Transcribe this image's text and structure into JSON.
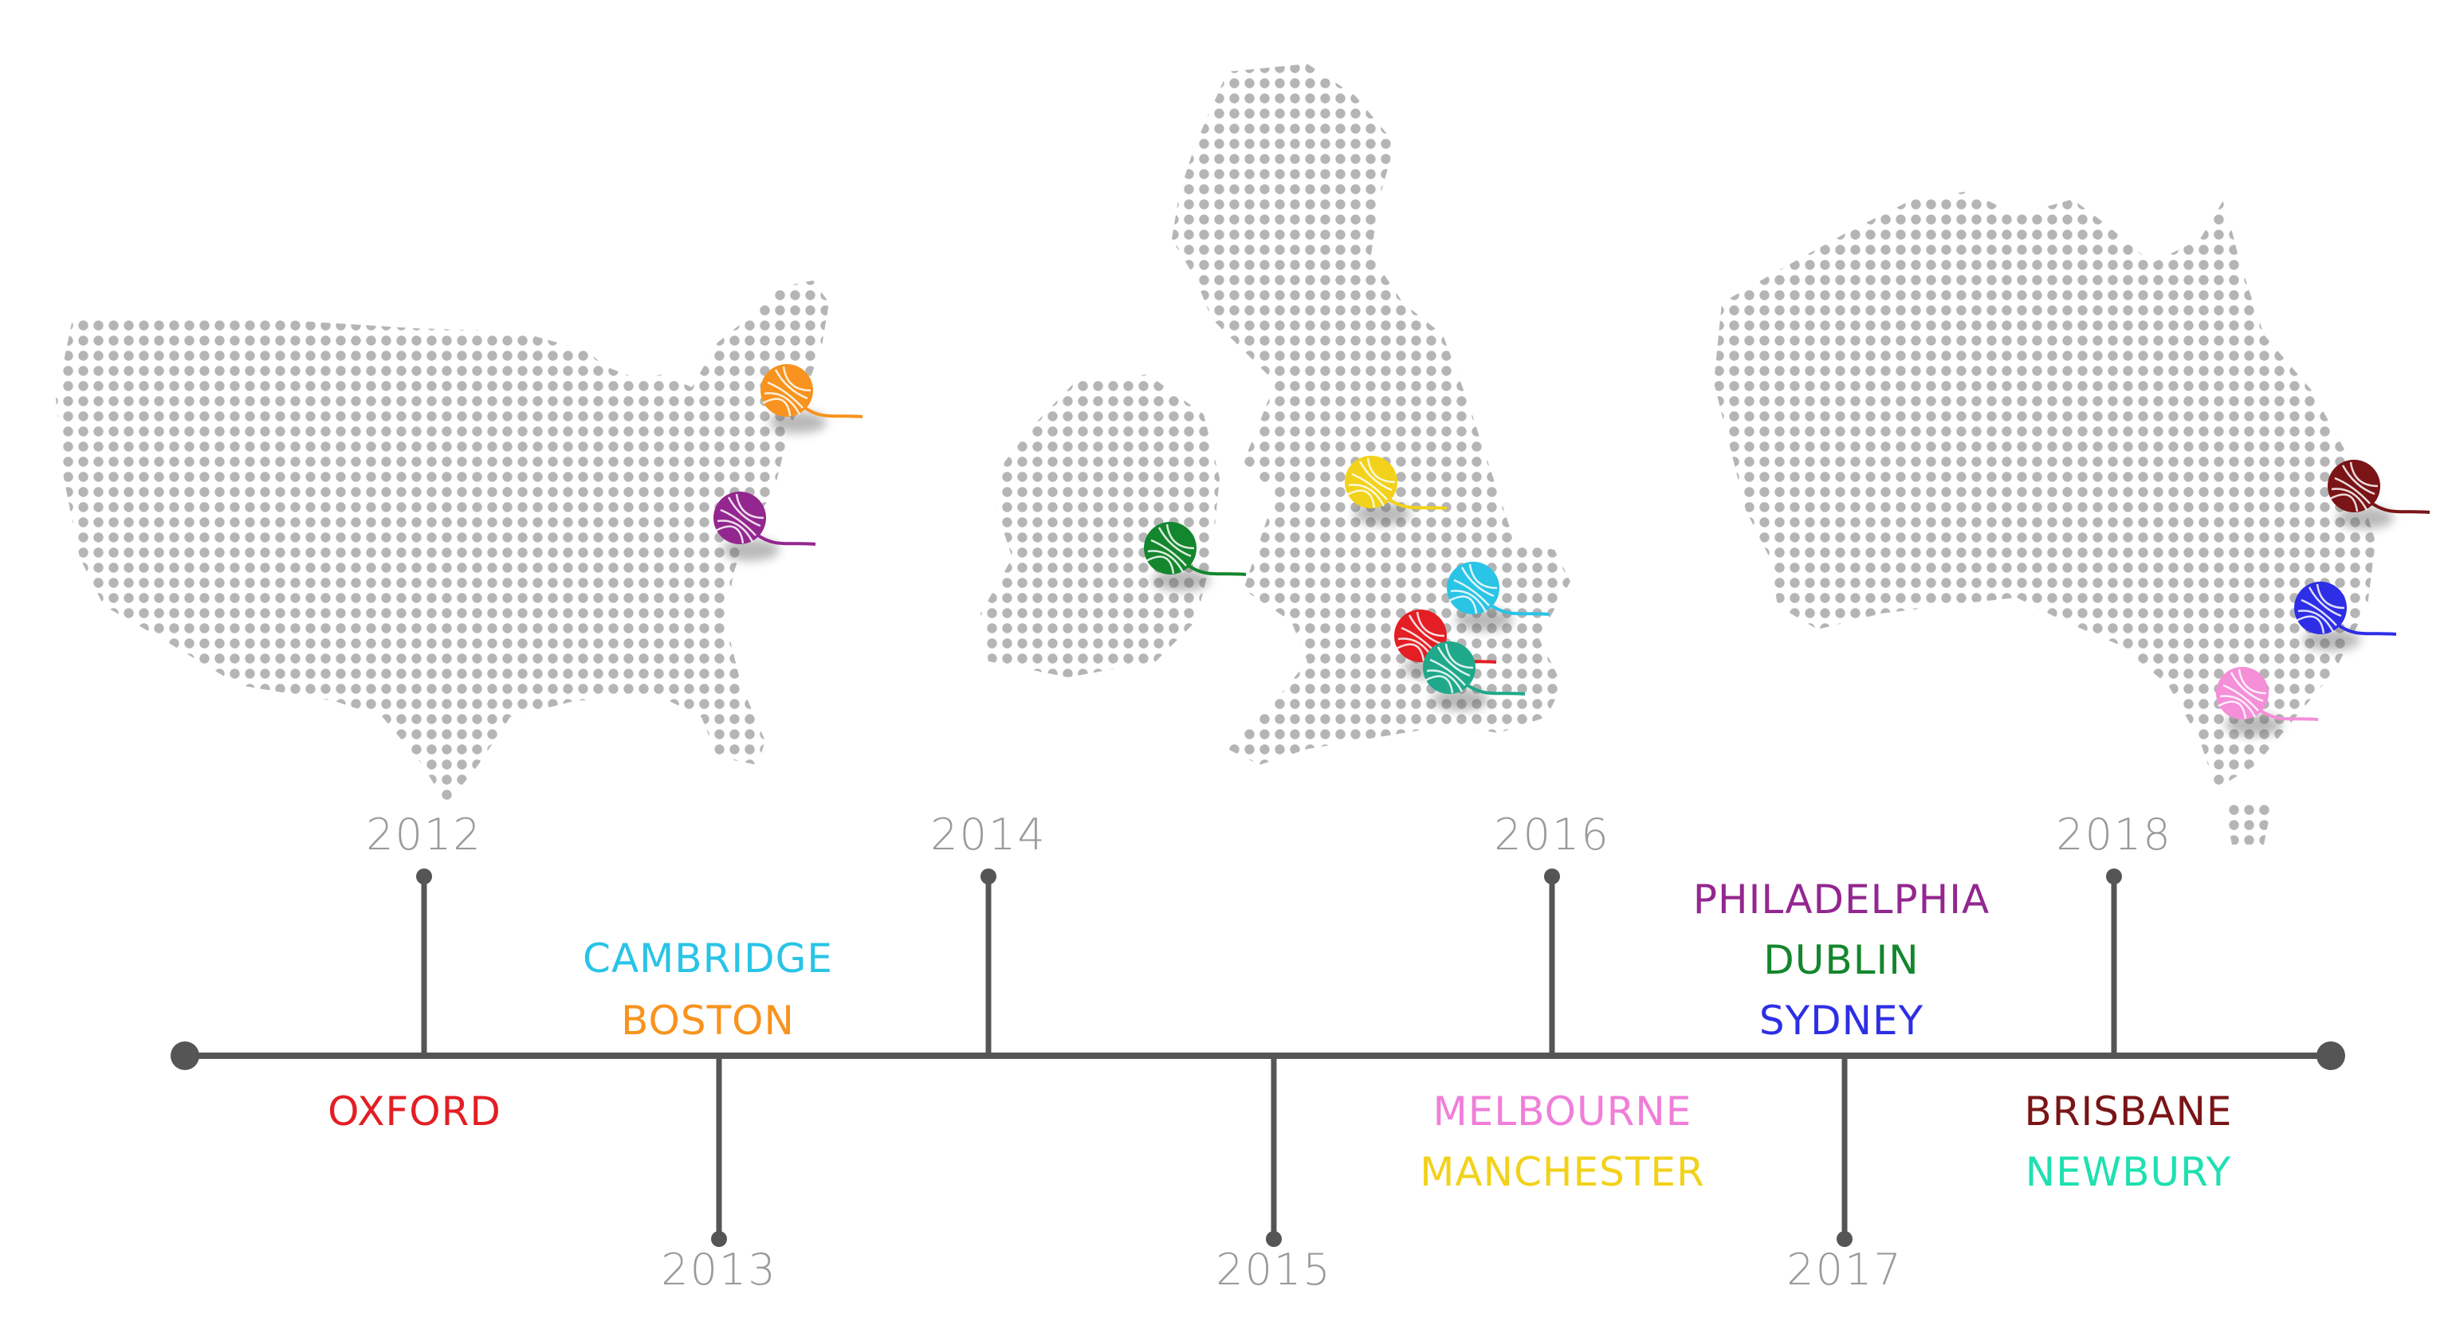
{
  "timeline": {
    "years": [
      {
        "label": "2012",
        "side": "above"
      },
      {
        "label": "2013",
        "side": "below"
      },
      {
        "label": "2014",
        "side": "above"
      },
      {
        "label": "2015",
        "side": "below"
      },
      {
        "label": "2016",
        "side": "above"
      },
      {
        "label": "2017",
        "side": "below"
      },
      {
        "label": "2018",
        "side": "above"
      }
    ],
    "city_groups": [
      {
        "year": "2012",
        "cities": [
          {
            "name": "OXFORD",
            "color": "#e31e24"
          }
        ]
      },
      {
        "year": "2013",
        "cities": [
          {
            "name": "CAMBRIDGE",
            "color": "#29c4e6"
          },
          {
            "name": "BOSTON",
            "color": "#f7931e"
          }
        ]
      },
      {
        "year": "2015",
        "cities": [
          {
            "name": "MELBOURNE",
            "color": "#f07ed9"
          },
          {
            "name": "MANCHESTER",
            "color": "#f2d21a"
          }
        ]
      },
      {
        "year": "2017",
        "cities": [
          {
            "name": "PHILADELPHIA",
            "color": "#93278f"
          },
          {
            "name": "DUBLIN",
            "color": "#14862d"
          },
          {
            "name": "SYDNEY",
            "color": "#2e2ee6"
          }
        ]
      },
      {
        "year": "2018",
        "cities": [
          {
            "name": "BRISBANE",
            "color": "#7a1416"
          },
          {
            "name": "NEWBURY",
            "color": "#1fe0b0"
          }
        ]
      }
    ]
  },
  "maps": [
    {
      "name": "usa-map",
      "pins": [
        {
          "city": "BOSTON",
          "color": "#f7931e"
        },
        {
          "city": "PHILADELPHIA",
          "color": "#93278f"
        }
      ]
    },
    {
      "name": "uk-ireland-map",
      "pins": [
        {
          "city": "DUBLIN",
          "color": "#14862d"
        },
        {
          "city": "MANCHESTER",
          "color": "#f2d21a"
        },
        {
          "city": "CAMBRIDGE",
          "color": "#29c4e6"
        },
        {
          "city": "OXFORD",
          "color": "#e31e24"
        },
        {
          "city": "NEWBURY",
          "color": "#1fa98a"
        }
      ]
    },
    {
      "name": "australia-map",
      "pins": [
        {
          "city": "BRISBANE",
          "color": "#7a1416"
        },
        {
          "city": "SYDNEY",
          "color": "#2e2ee6"
        },
        {
          "city": "MELBOURNE",
          "color": "#f48fd8"
        }
      ]
    }
  ],
  "colors": {
    "line": "#555555",
    "dots": "#b5b5b5",
    "year_text": "#9a9a9a"
  }
}
